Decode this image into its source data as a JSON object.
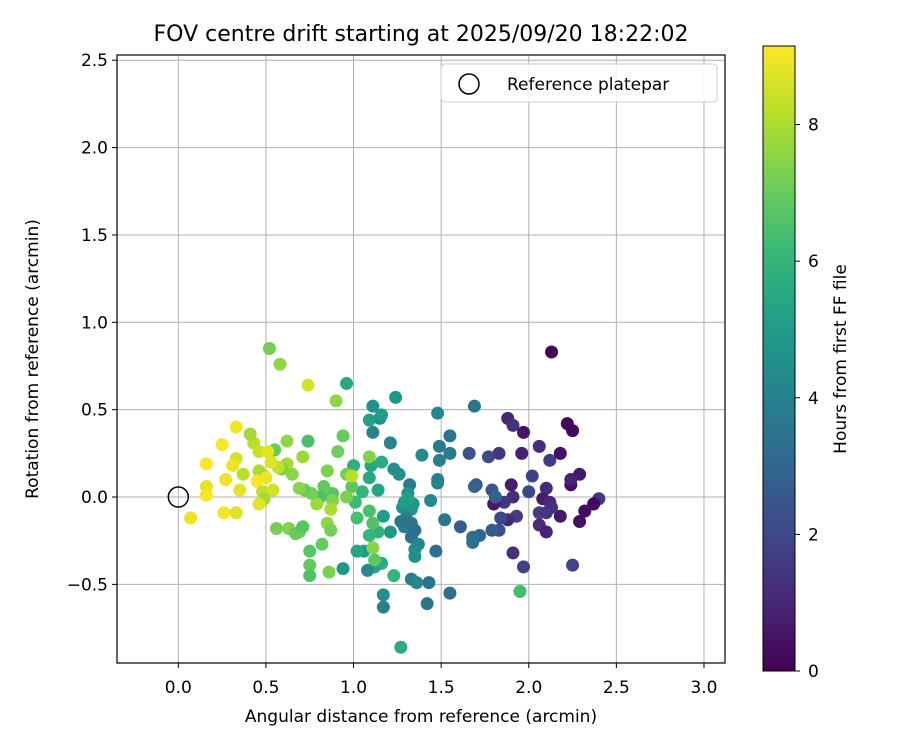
{
  "chart_data": {
    "type": "scatter",
    "title": "FOV centre drift starting at 2025/09/20 18:22:02",
    "xlabel": "Angular distance from reference (arcmin)",
    "ylabel": "Rotation from reference (arcmin)",
    "xlim": [
      -0.35,
      3.12
    ],
    "ylim": [
      -0.95,
      2.53
    ],
    "xticks": [
      0.0,
      0.5,
      1.0,
      1.5,
      2.0,
      2.5,
      3.0
    ],
    "xtick_labels": [
      "0.0",
      "0.5",
      "1.0",
      "1.5",
      "2.0",
      "2.5",
      "3.0"
    ],
    "yticks": [
      -0.5,
      0.0,
      0.5,
      1.0,
      1.5,
      2.0,
      2.5
    ],
    "ytick_labels": [
      "−0.5",
      "0.0",
      "0.5",
      "1.0",
      "1.5",
      "2.0",
      "2.5"
    ],
    "grid": true,
    "legend": {
      "location": "top-right",
      "entries": [
        "Reference platepar"
      ]
    },
    "reference_point": {
      "x": 0.0,
      "y": 0.0,
      "label": "Reference platepar"
    },
    "colorbar": {
      "label": "Hours from first FF file",
      "range": [
        0,
        9.15
      ],
      "ticks": [
        0,
        2,
        4,
        6,
        8
      ],
      "tick_labels": [
        "0",
        "2",
        "4",
        "6",
        "8"
      ],
      "colormap": "viridis",
      "stops": [
        "#440154",
        "#482878",
        "#3e4989",
        "#31688e",
        "#26828e",
        "#1f9e89",
        "#35b779",
        "#6ece58",
        "#b5de2b",
        "#fde725"
      ]
    },
    "points": [
      {
        "x": 2.13,
        "y": 0.83,
        "h": 0.1
      },
      {
        "x": 2.22,
        "y": 0.42,
        "h": 0.2
      },
      {
        "x": 2.25,
        "y": 0.38,
        "h": 0.2
      },
      {
        "x": 1.97,
        "y": 0.37,
        "h": 0.5
      },
      {
        "x": 1.88,
        "y": 0.45,
        "h": 1.0
      },
      {
        "x": 1.91,
        "y": 0.41,
        "h": 1.4
      },
      {
        "x": 2.18,
        "y": 0.25,
        "h": 0.4
      },
      {
        "x": 2.06,
        "y": 0.29,
        "h": 1.2
      },
      {
        "x": 2.12,
        "y": 0.21,
        "h": 1.6
      },
      {
        "x": 1.96,
        "y": 0.25,
        "h": 0.8
      },
      {
        "x": 1.83,
        "y": 0.25,
        "h": 1.5
      },
      {
        "x": 1.77,
        "y": 0.23,
        "h": 2.1
      },
      {
        "x": 1.66,
        "y": 0.25,
        "h": 2.4
      },
      {
        "x": 2.24,
        "y": 0.07,
        "h": 0.3
      },
      {
        "x": 2.29,
        "y": 0.13,
        "h": 0.6
      },
      {
        "x": 2.24,
        "y": 0.1,
        "h": 0.9
      },
      {
        "x": 2.4,
        "y": -0.01,
        "h": 1.5
      },
      {
        "x": 2.37,
        "y": -0.04,
        "h": 0.2
      },
      {
        "x": 2.32,
        "y": -0.08,
        "h": 0.3
      },
      {
        "x": 2.29,
        "y": -0.14,
        "h": 0.4
      },
      {
        "x": 2.18,
        "y": -0.11,
        "h": 0.6
      },
      {
        "x": 2.1,
        "y": 0.05,
        "h": 1.1
      },
      {
        "x": 2.08,
        "y": -0.01,
        "h": 0.7
      },
      {
        "x": 2.12,
        "y": -0.03,
        "h": 1.0
      },
      {
        "x": 2.13,
        "y": -0.06,
        "h": 1.3
      },
      {
        "x": 2.06,
        "y": -0.09,
        "h": 1.7
      },
      {
        "x": 2.1,
        "y": -0.09,
        "h": 1.5
      },
      {
        "x": 2.06,
        "y": -0.16,
        "h": 1.2
      },
      {
        "x": 2.1,
        "y": -0.2,
        "h": 0.9
      },
      {
        "x": 2.02,
        "y": 0.12,
        "h": 1.8
      },
      {
        "x": 2.0,
        "y": 0.03,
        "h": 2.0
      },
      {
        "x": 1.9,
        "y": 0.07,
        "h": 0.7
      },
      {
        "x": 1.91,
        "y": 0.0,
        "h": 1.2
      },
      {
        "x": 1.86,
        "y": -0.03,
        "h": 1.4
      },
      {
        "x": 1.93,
        "y": -0.11,
        "h": 1.6
      },
      {
        "x": 1.88,
        "y": -0.13,
        "h": 1.0
      },
      {
        "x": 1.84,
        "y": -0.12,
        "h": 2.0
      },
      {
        "x": 1.8,
        "y": -0.04,
        "h": 0.6
      },
      {
        "x": 1.79,
        "y": 0.04,
        "h": 2.5
      },
      {
        "x": 1.81,
        "y": 0.0,
        "h": 2.8
      },
      {
        "x": 1.83,
        "y": -0.19,
        "h": 2.2
      },
      {
        "x": 1.79,
        "y": -0.19,
        "h": 2.6
      },
      {
        "x": 1.91,
        "y": -0.32,
        "h": 1.3
      },
      {
        "x": 1.97,
        "y": -0.4,
        "h": 1.8
      },
      {
        "x": 2.25,
        "y": -0.39,
        "h": 1.9
      },
      {
        "x": 1.7,
        "y": 0.07,
        "h": 2.3
      },
      {
        "x": 1.69,
        "y": 0.06,
        "h": 3.0
      },
      {
        "x": 1.72,
        "y": -0.22,
        "h": 2.9
      },
      {
        "x": 1.68,
        "y": -0.23,
        "h": 3.2
      },
      {
        "x": 1.68,
        "y": -0.26,
        "h": 3.4
      },
      {
        "x": 1.61,
        "y": -0.17,
        "h": 2.7
      },
      {
        "x": 1.55,
        "y": -0.55,
        "h": 3.3
      },
      {
        "x": 1.69,
        "y": 0.52,
        "h": 3.6
      },
      {
        "x": 1.55,
        "y": 0.35,
        "h": 3.5
      },
      {
        "x": 1.55,
        "y": 0.25,
        "h": 3.8
      },
      {
        "x": 1.49,
        "y": 0.29,
        "h": 3.7
      },
      {
        "x": 1.49,
        "y": 0.21,
        "h": 3.9
      },
      {
        "x": 1.48,
        "y": 0.08,
        "h": 4.0
      },
      {
        "x": 1.48,
        "y": 0.1,
        "h": 4.1
      },
      {
        "x": 1.44,
        "y": -0.02,
        "h": 4.3
      },
      {
        "x": 1.52,
        "y": -0.13,
        "h": 3.6
      },
      {
        "x": 1.47,
        "y": -0.31,
        "h": 3.4
      },
      {
        "x": 1.43,
        "y": -0.49,
        "h": 3.5
      },
      {
        "x": 1.42,
        "y": -0.61,
        "h": 3.6
      },
      {
        "x": 1.48,
        "y": 0.48,
        "h": 4.2
      },
      {
        "x": 1.39,
        "y": 0.24,
        "h": 4.4
      },
      {
        "x": 1.32,
        "y": 0.07,
        "h": 3.8
      },
      {
        "x": 1.31,
        "y": 0.02,
        "h": 4.6
      },
      {
        "x": 1.34,
        "y": -0.04,
        "h": 4.7
      },
      {
        "x": 1.33,
        "y": -0.07,
        "h": 4.9
      },
      {
        "x": 1.28,
        "y": -0.06,
        "h": 4.5
      },
      {
        "x": 1.3,
        "y": -0.12,
        "h": 4.1
      },
      {
        "x": 1.29,
        "y": -0.17,
        "h": 3.9
      },
      {
        "x": 1.33,
        "y": -0.15,
        "h": 3.6
      },
      {
        "x": 1.27,
        "y": -0.14,
        "h": 3.5
      },
      {
        "x": 1.35,
        "y": -0.19,
        "h": 3.3
      },
      {
        "x": 1.33,
        "y": -0.23,
        "h": 3.4
      },
      {
        "x": 1.37,
        "y": -0.27,
        "h": 4.2
      },
      {
        "x": 1.35,
        "y": -0.3,
        "h": 4.4
      },
      {
        "x": 1.35,
        "y": -0.34,
        "h": 4.6
      },
      {
        "x": 1.33,
        "y": -0.47,
        "h": 4.0
      },
      {
        "x": 1.36,
        "y": -0.49,
        "h": 4.3
      },
      {
        "x": 1.29,
        "y": -0.03,
        "h": 5.0
      },
      {
        "x": 1.31,
        "y": -0.01,
        "h": 5.2
      },
      {
        "x": 1.26,
        "y": 0.13,
        "h": 4.7
      },
      {
        "x": 1.23,
        "y": 0.16,
        "h": 4.5
      },
      {
        "x": 1.21,
        "y": 0.31,
        "h": 4.2
      },
      {
        "x": 1.24,
        "y": 0.57,
        "h": 4.8
      },
      {
        "x": 1.15,
        "y": 0.45,
        "h": 4.4
      },
      {
        "x": 1.11,
        "y": 0.52,
        "h": 4.6
      },
      {
        "x": 1.11,
        "y": 0.37,
        "h": 4.1
      },
      {
        "x": 1.16,
        "y": 0.47,
        "h": 5.0
      },
      {
        "x": 1.09,
        "y": 0.44,
        "h": 5.2
      },
      {
        "x": 1.1,
        "y": 0.18,
        "h": 5.4
      },
      {
        "x": 1.16,
        "y": 0.2,
        "h": 5.6
      },
      {
        "x": 1.14,
        "y": 0.04,
        "h": 5.3
      },
      {
        "x": 1.09,
        "y": 0.11,
        "h": 5.5
      },
      {
        "x": 1.17,
        "y": -0.11,
        "h": 5.1
      },
      {
        "x": 1.21,
        "y": -0.2,
        "h": 4.9
      },
      {
        "x": 1.14,
        "y": -0.2,
        "h": 5.8
      },
      {
        "x": 1.16,
        "y": -0.38,
        "h": 5.6
      },
      {
        "x": 1.12,
        "y": -0.4,
        "h": 5.3
      },
      {
        "x": 1.08,
        "y": -0.42,
        "h": 4.3
      },
      {
        "x": 1.06,
        "y": -0.31,
        "h": 5.0
      },
      {
        "x": 1.02,
        "y": -0.31,
        "h": 5.4
      },
      {
        "x": 1.17,
        "y": -0.56,
        "h": 4.5
      },
      {
        "x": 1.17,
        "y": -0.63,
        "h": 4.0
      },
      {
        "x": 1.23,
        "y": -0.45,
        "h": 6.0
      },
      {
        "x": 1.27,
        "y": -0.86,
        "h": 5.6
      },
      {
        "x": 1.95,
        "y": -0.54,
        "h": 6.3
      },
      {
        "x": 0.94,
        "y": -0.41,
        "h": 4.8
      },
      {
        "x": 0.96,
        "y": 0.65,
        "h": 5.5
      },
      {
        "x": 1.0,
        "y": 0.18,
        "h": 5.8
      },
      {
        "x": 1.05,
        "y": 0.03,
        "h": 6.0
      },
      {
        "x": 1.01,
        "y": -0.03,
        "h": 6.2
      },
      {
        "x": 1.09,
        "y": -0.08,
        "h": 6.5
      },
      {
        "x": 1.11,
        "y": -0.15,
        "h": 6.6
      },
      {
        "x": 1.09,
        "y": -0.22,
        "h": 6.1
      },
      {
        "x": 1.11,
        "y": -0.29,
        "h": 7.5
      },
      {
        "x": 1.12,
        "y": -0.36,
        "h": 6.8
      },
      {
        "x": 1.02,
        "y": -0.12,
        "h": 6.4
      },
      {
        "x": 1.09,
        "y": 0.23,
        "h": 7.4
      },
      {
        "x": 0.99,
        "y": 0.06,
        "h": 6.8
      },
      {
        "x": 0.96,
        "y": 0.13,
        "h": 7.2
      },
      {
        "x": 0.99,
        "y": 0.12,
        "h": 8.2
      },
      {
        "x": 0.96,
        "y": 0.0,
        "h": 7.3
      },
      {
        "x": 0.94,
        "y": 0.35,
        "h": 7.0
      },
      {
        "x": 0.9,
        "y": 0.55,
        "h": 7.6
      },
      {
        "x": 0.91,
        "y": 0.26,
        "h": 7.1
      },
      {
        "x": 0.88,
        "y": 0.02,
        "h": 6.7
      },
      {
        "x": 0.88,
        "y": -0.02,
        "h": 7.4
      },
      {
        "x": 0.85,
        "y": 0.15,
        "h": 7.3
      },
      {
        "x": 0.83,
        "y": 0.06,
        "h": 6.9
      },
      {
        "x": 0.81,
        "y": 0.0,
        "h": 6.5
      },
      {
        "x": 0.79,
        "y": -0.04,
        "h": 7.8
      },
      {
        "x": 0.76,
        "y": 0.02,
        "h": 7.2
      },
      {
        "x": 0.74,
        "y": 0.32,
        "h": 6.5
      },
      {
        "x": 0.72,
        "y": 0.04,
        "h": 7.0
      },
      {
        "x": 0.69,
        "y": 0.05,
        "h": 7.5
      },
      {
        "x": 0.87,
        "y": -0.07,
        "h": 8.0
      },
      {
        "x": 0.85,
        "y": -0.15,
        "h": 7.6
      },
      {
        "x": 0.87,
        "y": -0.19,
        "h": 7.2
      },
      {
        "x": 0.82,
        "y": -0.27,
        "h": 7.0
      },
      {
        "x": 0.75,
        "y": -0.31,
        "h": 6.7
      },
      {
        "x": 0.75,
        "y": -0.39,
        "h": 6.9
      },
      {
        "x": 0.75,
        "y": -0.45,
        "h": 6.6
      },
      {
        "x": 0.86,
        "y": -0.43,
        "h": 7.3
      },
      {
        "x": 0.69,
        "y": -0.2,
        "h": 7.1
      },
      {
        "x": 0.63,
        "y": -0.18,
        "h": 7.4
      },
      {
        "x": 0.67,
        "y": -0.21,
        "h": 7.0
      },
      {
        "x": 0.71,
        "y": -0.17,
        "h": 6.7
      },
      {
        "x": 0.56,
        "y": -0.18,
        "h": 7.2
      },
      {
        "x": 0.65,
        "y": 0.13,
        "h": 7.5
      },
      {
        "x": 0.62,
        "y": 0.19,
        "h": 7.9
      },
      {
        "x": 0.59,
        "y": 0.16,
        "h": 7.3
      },
      {
        "x": 0.55,
        "y": 0.27,
        "h": 7.0
      },
      {
        "x": 0.57,
        "y": 0.17,
        "h": 8.3
      },
      {
        "x": 0.71,
        "y": 0.23,
        "h": 7.8
      },
      {
        "x": 0.62,
        "y": 0.32,
        "h": 7.6
      },
      {
        "x": 0.52,
        "y": 0.85,
        "h": 7.2
      },
      {
        "x": 0.58,
        "y": 0.76,
        "h": 7.6
      },
      {
        "x": 0.74,
        "y": 0.64,
        "h": 8.6
      },
      {
        "x": 0.43,
        "y": 0.31,
        "h": 8.2
      },
      {
        "x": 0.41,
        "y": 0.36,
        "h": 7.9
      },
      {
        "x": 0.46,
        "y": 0.26,
        "h": 8.4
      },
      {
        "x": 0.46,
        "y": 0.15,
        "h": 8.1
      },
      {
        "x": 0.49,
        "y": 0.12,
        "h": 7.8
      },
      {
        "x": 0.51,
        "y": 0.26,
        "h": 8.8
      },
      {
        "x": 0.53,
        "y": 0.2,
        "h": 8.7
      },
      {
        "x": 0.45,
        "y": 0.09,
        "h": 9.1
      },
      {
        "x": 0.5,
        "y": 0.11,
        "h": 8.9
      },
      {
        "x": 0.48,
        "y": 0.03,
        "h": 8.3
      },
      {
        "x": 0.54,
        "y": 0.04,
        "h": 8.5
      },
      {
        "x": 0.49,
        "y": -0.01,
        "h": 7.9
      },
      {
        "x": 0.46,
        "y": -0.04,
        "h": 8.8
      },
      {
        "x": 0.37,
        "y": 0.13,
        "h": 8.2
      },
      {
        "x": 0.35,
        "y": 0.04,
        "h": 8.8
      },
      {
        "x": 0.33,
        "y": 0.22,
        "h": 8.6
      },
      {
        "x": 0.31,
        "y": 0.18,
        "h": 8.9
      },
      {
        "x": 0.33,
        "y": 0.4,
        "h": 9.0
      },
      {
        "x": 0.25,
        "y": 0.3,
        "h": 9.1
      },
      {
        "x": 0.27,
        "y": 0.1,
        "h": 8.9
      },
      {
        "x": 0.33,
        "y": -0.09,
        "h": 8.7
      },
      {
        "x": 0.26,
        "y": -0.09,
        "h": 9.0
      },
      {
        "x": 0.16,
        "y": 0.19,
        "h": 9.1
      },
      {
        "x": 0.16,
        "y": 0.06,
        "h": 8.8
      },
      {
        "x": 0.16,
        "y": 0.01,
        "h": 9.1
      },
      {
        "x": 0.07,
        "y": -0.12,
        "h": 8.9
      }
    ]
  }
}
